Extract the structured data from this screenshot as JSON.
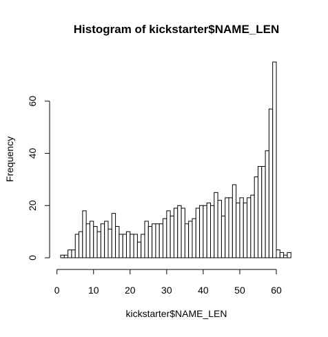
{
  "chart_data": {
    "type": "bar",
    "title": "Histogram of kickstarter$NAME_LEN",
    "xlabel": "kickstarter$NAME_LEN",
    "ylabel": "Frequency",
    "bin_width": 1,
    "bin_edges": [
      1,
      2,
      3,
      4,
      5,
      6,
      7,
      8,
      9,
      10,
      11,
      12,
      13,
      14,
      15,
      16,
      17,
      18,
      19,
      20,
      21,
      22,
      23,
      24,
      25,
      26,
      27,
      28,
      29,
      30,
      31,
      32,
      33,
      34,
      35,
      36,
      37,
      38,
      39,
      40,
      41,
      42,
      43,
      44,
      45,
      46,
      47,
      48,
      49,
      50,
      51,
      52,
      53,
      54,
      55,
      56,
      57,
      58,
      59,
      60,
      61,
      62,
      63,
      64
    ],
    "values": [
      1,
      1,
      3,
      3,
      9,
      10,
      18,
      13,
      14,
      12,
      10,
      13,
      14,
      11,
      17,
      12,
      9,
      9,
      10,
      9,
      9,
      6,
      9,
      14,
      12,
      13,
      13,
      13,
      15,
      18,
      16,
      19,
      20,
      19,
      13,
      14,
      15,
      19,
      20,
      20,
      21,
      20,
      25,
      22,
      16,
      23,
      23,
      28,
      21,
      23,
      21,
      23,
      24,
      31,
      35,
      35,
      41,
      57,
      75,
      3,
      2,
      1,
      2
    ],
    "xlim": [
      0,
      65
    ],
    "ylim": [
      0,
      80
    ],
    "xticks": [
      0,
      10,
      20,
      30,
      40,
      50,
      60
    ],
    "yticks": [
      0,
      20,
      40,
      60
    ]
  }
}
